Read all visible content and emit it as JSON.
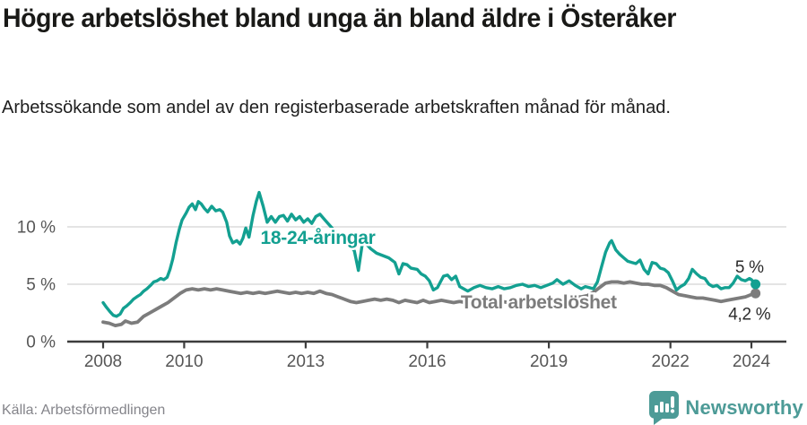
{
  "header": {
    "title": "Högre arbetslöshet bland unga än bland äldre i Österåker",
    "subtitle": "Arbetssökande som andel av den registerbaserade arbetskraften månad för månad."
  },
  "footer": {
    "source": "Källa: Arbetsförmedlingen",
    "brand": "Newsworthy",
    "brand_color": "#4d9b97"
  },
  "chart_data": {
    "type": "line",
    "title": "Högre arbetslöshet bland unga än bland äldre i Österåker",
    "xlabel": "",
    "ylabel": "",
    "grid": true,
    "xlim": [
      2007.8,
      2024.85
    ],
    "ylim": [
      0,
      13.5
    ],
    "axis_color": "#3d3d3d",
    "grid_color": "#dcdcdc",
    "tick_label_color": "#565656",
    "y_ticks": [
      {
        "value": 0,
        "label": "0 %"
      },
      {
        "value": 5,
        "label": "5 %"
      },
      {
        "value": 10,
        "label": "10 %"
      }
    ],
    "x_ticks": [
      {
        "value": 2008,
        "label": "2008"
      },
      {
        "value": 2010,
        "label": "2010"
      },
      {
        "value": 2013,
        "label": "2013"
      },
      {
        "value": 2016,
        "label": "2016"
      },
      {
        "value": 2019,
        "label": "2019"
      },
      {
        "value": 2022,
        "label": "2022"
      },
      {
        "value": 2024,
        "label": "2024"
      }
    ],
    "series": [
      {
        "name": "18-24-åringar",
        "color": "#13a091",
        "width": 3.4,
        "end_value_label": "5 %",
        "points": [
          [
            2008.0,
            3.4
          ],
          [
            2008.08,
            3.0
          ],
          [
            2008.17,
            2.6
          ],
          [
            2008.25,
            2.3
          ],
          [
            2008.33,
            2.2
          ],
          [
            2008.42,
            2.4
          ],
          [
            2008.5,
            2.9
          ],
          [
            2008.58,
            3.1
          ],
          [
            2008.67,
            3.4
          ],
          [
            2008.75,
            3.7
          ],
          [
            2008.83,
            3.9
          ],
          [
            2008.92,
            4.1
          ],
          [
            2009.0,
            4.4
          ],
          [
            2009.08,
            4.6
          ],
          [
            2009.17,
            4.9
          ],
          [
            2009.25,
            5.2
          ],
          [
            2009.33,
            5.3
          ],
          [
            2009.42,
            5.5
          ],
          [
            2009.5,
            5.4
          ],
          [
            2009.58,
            5.6
          ],
          [
            2009.65,
            6.3
          ],
          [
            2009.72,
            7.2
          ],
          [
            2009.8,
            8.6
          ],
          [
            2009.88,
            9.8
          ],
          [
            2009.95,
            10.6
          ],
          [
            2010.05,
            11.2
          ],
          [
            2010.12,
            11.7
          ],
          [
            2010.2,
            12.0
          ],
          [
            2010.28,
            11.5
          ],
          [
            2010.35,
            12.2
          ],
          [
            2010.42,
            12.0
          ],
          [
            2010.5,
            11.6
          ],
          [
            2010.58,
            11.3
          ],
          [
            2010.68,
            11.8
          ],
          [
            2010.78,
            11.4
          ],
          [
            2010.88,
            11.5
          ],
          [
            2010.95,
            11.3
          ],
          [
            2011.05,
            10.4
          ],
          [
            2011.12,
            9.2
          ],
          [
            2011.2,
            8.6
          ],
          [
            2011.3,
            8.8
          ],
          [
            2011.38,
            8.5
          ],
          [
            2011.45,
            9.0
          ],
          [
            2011.52,
            9.9
          ],
          [
            2011.6,
            9.1
          ],
          [
            2011.7,
            11.0
          ],
          [
            2011.78,
            12.2
          ],
          [
            2011.85,
            13.0
          ],
          [
            2011.95,
            11.8
          ],
          [
            2012.05,
            10.4
          ],
          [
            2012.15,
            10.9
          ],
          [
            2012.25,
            10.4
          ],
          [
            2012.35,
            10.9
          ],
          [
            2012.45,
            11.0
          ],
          [
            2012.55,
            10.5
          ],
          [
            2012.65,
            11.1
          ],
          [
            2012.75,
            10.6
          ],
          [
            2012.85,
            10.9
          ],
          [
            2012.95,
            10.4
          ],
          [
            2013.05,
            10.7
          ],
          [
            2013.15,
            10.3
          ],
          [
            2013.25,
            10.9
          ],
          [
            2013.35,
            11.1
          ],
          [
            2013.5,
            10.5
          ],
          [
            2013.65,
            9.9
          ],
          [
            2013.8,
            9.3
          ],
          [
            2013.95,
            8.8
          ],
          [
            2014.1,
            8.4
          ],
          [
            2014.2,
            7.9
          ],
          [
            2014.3,
            6.2
          ],
          [
            2014.4,
            8.6
          ],
          [
            2014.5,
            8.5
          ],
          [
            2014.6,
            8.1
          ],
          [
            2014.75,
            7.7
          ],
          [
            2014.9,
            7.5
          ],
          [
            2015.05,
            7.3
          ],
          [
            2015.2,
            6.9
          ],
          [
            2015.3,
            5.9
          ],
          [
            2015.4,
            6.8
          ],
          [
            2015.5,
            6.7
          ],
          [
            2015.6,
            6.4
          ],
          [
            2015.75,
            6.3
          ],
          [
            2015.85,
            5.9
          ],
          [
            2015.95,
            5.7
          ],
          [
            2016.05,
            5.3
          ],
          [
            2016.15,
            4.5
          ],
          [
            2016.25,
            4.7
          ],
          [
            2016.4,
            5.7
          ],
          [
            2016.5,
            5.8
          ],
          [
            2016.6,
            5.4
          ],
          [
            2016.7,
            5.7
          ],
          [
            2016.8,
            4.8
          ],
          [
            2016.9,
            4.6
          ],
          [
            2017.0,
            4.4
          ],
          [
            2017.15,
            4.7
          ],
          [
            2017.3,
            4.9
          ],
          [
            2017.45,
            4.7
          ],
          [
            2017.6,
            4.6
          ],
          [
            2017.75,
            4.8
          ],
          [
            2017.9,
            4.6
          ],
          [
            2018.05,
            4.7
          ],
          [
            2018.2,
            4.9
          ],
          [
            2018.35,
            5.0
          ],
          [
            2018.5,
            4.8
          ],
          [
            2018.65,
            4.9
          ],
          [
            2018.8,
            4.7
          ],
          [
            2018.95,
            4.9
          ],
          [
            2019.1,
            5.1
          ],
          [
            2019.2,
            5.4
          ],
          [
            2019.35,
            5.0
          ],
          [
            2019.5,
            5.3
          ],
          [
            2019.65,
            4.9
          ],
          [
            2019.8,
            4.6
          ],
          [
            2019.9,
            4.8
          ],
          [
            2020.0,
            4.7
          ],
          [
            2020.1,
            4.6
          ],
          [
            2020.2,
            5.2
          ],
          [
            2020.3,
            6.5
          ],
          [
            2020.4,
            7.8
          ],
          [
            2020.5,
            8.6
          ],
          [
            2020.55,
            8.8
          ],
          [
            2020.65,
            8.0
          ],
          [
            2020.75,
            7.6
          ],
          [
            2020.85,
            7.3
          ],
          [
            2020.95,
            7.0
          ],
          [
            2021.05,
            6.9
          ],
          [
            2021.15,
            6.8
          ],
          [
            2021.25,
            7.1
          ],
          [
            2021.35,
            6.3
          ],
          [
            2021.45,
            5.9
          ],
          [
            2021.55,
            6.9
          ],
          [
            2021.65,
            6.8
          ],
          [
            2021.75,
            6.4
          ],
          [
            2021.85,
            6.3
          ],
          [
            2021.95,
            6.0
          ],
          [
            2022.05,
            5.3
          ],
          [
            2022.15,
            4.5
          ],
          [
            2022.25,
            4.8
          ],
          [
            2022.35,
            5.0
          ],
          [
            2022.45,
            5.5
          ],
          [
            2022.54,
            6.3
          ],
          [
            2022.65,
            5.9
          ],
          [
            2022.75,
            5.6
          ],
          [
            2022.85,
            5.5
          ],
          [
            2022.95,
            5.0
          ],
          [
            2023.05,
            4.8
          ],
          [
            2023.15,
            4.9
          ],
          [
            2023.25,
            4.6
          ],
          [
            2023.35,
            4.7
          ],
          [
            2023.45,
            4.7
          ],
          [
            2023.55,
            5.1
          ],
          [
            2023.65,
            5.7
          ],
          [
            2023.75,
            5.4
          ],
          [
            2023.85,
            5.3
          ],
          [
            2023.95,
            5.5
          ],
          [
            2024.0,
            5.4
          ],
          [
            2024.1,
            5.0
          ]
        ]
      },
      {
        "name": "Total arbetslöshet",
        "color": "#7c7c7c",
        "width": 3.8,
        "end_value_label": "4,2 %",
        "points": [
          [
            2008.0,
            1.7
          ],
          [
            2008.15,
            1.6
          ],
          [
            2008.3,
            1.4
          ],
          [
            2008.45,
            1.5
          ],
          [
            2008.55,
            1.8
          ],
          [
            2008.7,
            1.6
          ],
          [
            2008.85,
            1.7
          ],
          [
            2009.0,
            2.2
          ],
          [
            2009.15,
            2.5
          ],
          [
            2009.3,
            2.8
          ],
          [
            2009.45,
            3.1
          ],
          [
            2009.6,
            3.4
          ],
          [
            2009.75,
            3.8
          ],
          [
            2009.9,
            4.2
          ],
          [
            2010.05,
            4.5
          ],
          [
            2010.2,
            4.6
          ],
          [
            2010.35,
            4.5
          ],
          [
            2010.5,
            4.6
          ],
          [
            2010.65,
            4.5
          ],
          [
            2010.8,
            4.6
          ],
          [
            2010.95,
            4.5
          ],
          [
            2011.1,
            4.4
          ],
          [
            2011.25,
            4.3
          ],
          [
            2011.4,
            4.2
          ],
          [
            2011.55,
            4.3
          ],
          [
            2011.7,
            4.2
          ],
          [
            2011.85,
            4.3
          ],
          [
            2012.0,
            4.2
          ],
          [
            2012.15,
            4.3
          ],
          [
            2012.3,
            4.4
          ],
          [
            2012.45,
            4.3
          ],
          [
            2012.6,
            4.2
          ],
          [
            2012.75,
            4.3
          ],
          [
            2012.9,
            4.2
          ],
          [
            2013.05,
            4.3
          ],
          [
            2013.2,
            4.2
          ],
          [
            2013.35,
            4.4
          ],
          [
            2013.5,
            4.2
          ],
          [
            2013.65,
            4.1
          ],
          [
            2013.8,
            3.9
          ],
          [
            2013.95,
            3.7
          ],
          [
            2014.1,
            3.5
          ],
          [
            2014.25,
            3.4
          ],
          [
            2014.4,
            3.5
          ],
          [
            2014.55,
            3.6
          ],
          [
            2014.7,
            3.7
          ],
          [
            2014.85,
            3.6
          ],
          [
            2015.0,
            3.7
          ],
          [
            2015.15,
            3.6
          ],
          [
            2015.3,
            3.4
          ],
          [
            2015.45,
            3.6
          ],
          [
            2015.6,
            3.5
          ],
          [
            2015.75,
            3.4
          ],
          [
            2015.9,
            3.6
          ],
          [
            2016.05,
            3.4
          ],
          [
            2016.2,
            3.5
          ],
          [
            2016.35,
            3.6
          ],
          [
            2016.5,
            3.5
          ],
          [
            2016.65,
            3.4
          ],
          [
            2016.8,
            3.5
          ],
          [
            2016.95,
            3.4
          ],
          [
            2017.1,
            3.4
          ],
          [
            2017.25,
            3.5
          ],
          [
            2017.4,
            3.4
          ],
          [
            2017.55,
            3.5
          ],
          [
            2017.7,
            3.4
          ],
          [
            2017.85,
            3.5
          ],
          [
            2018.0,
            3.4
          ],
          [
            2018.15,
            3.5
          ],
          [
            2018.3,
            3.6
          ],
          [
            2018.45,
            3.5
          ],
          [
            2018.6,
            3.6
          ],
          [
            2018.75,
            3.5
          ],
          [
            2018.9,
            3.6
          ],
          [
            2019.05,
            3.6
          ],
          [
            2019.2,
            3.7
          ],
          [
            2019.35,
            3.7
          ],
          [
            2019.5,
            3.8
          ],
          [
            2019.65,
            3.9
          ],
          [
            2019.8,
            3.9
          ],
          [
            2019.95,
            4.0
          ],
          [
            2020.1,
            4.3
          ],
          [
            2020.25,
            4.7
          ],
          [
            2020.4,
            5.1
          ],
          [
            2020.55,
            5.2
          ],
          [
            2020.7,
            5.2
          ],
          [
            2020.85,
            5.1
          ],
          [
            2021.0,
            5.2
          ],
          [
            2021.15,
            5.1
          ],
          [
            2021.3,
            5.0
          ],
          [
            2021.45,
            5.0
          ],
          [
            2021.6,
            4.9
          ],
          [
            2021.75,
            4.9
          ],
          [
            2021.9,
            4.7
          ],
          [
            2022.05,
            4.4
          ],
          [
            2022.2,
            4.1
          ],
          [
            2022.35,
            4.0
          ],
          [
            2022.5,
            3.9
          ],
          [
            2022.65,
            3.8
          ],
          [
            2022.8,
            3.8
          ],
          [
            2022.95,
            3.7
          ],
          [
            2023.1,
            3.6
          ],
          [
            2023.25,
            3.5
          ],
          [
            2023.4,
            3.6
          ],
          [
            2023.55,
            3.7
          ],
          [
            2023.7,
            3.8
          ],
          [
            2023.85,
            3.9
          ],
          [
            2024.0,
            4.1
          ],
          [
            2024.1,
            4.2
          ]
        ]
      }
    ],
    "annotations": [
      {
        "id": "series-label-youth",
        "text": "18-24-åringar",
        "x": 2013.3,
        "y": 9.05,
        "color": "#13a091",
        "weight": "bold",
        "size": 21
      },
      {
        "id": "series-label-total",
        "text": "Total arbetslöshet",
        "x": 2018.75,
        "y": 3.45,
        "color": "#7c7c7c",
        "weight": "bold",
        "size": 21
      },
      {
        "id": "end-label-youth",
        "text": "5 %",
        "x": 2023.95,
        "y": 6.55,
        "color": "#2b2b2b",
        "weight": "normal",
        "size": 19
      },
      {
        "id": "end-label-total",
        "text": "4,2 %",
        "x": 2023.95,
        "y": 2.45,
        "color": "#2b2b2b",
        "weight": "normal",
        "size": 19
      }
    ]
  }
}
